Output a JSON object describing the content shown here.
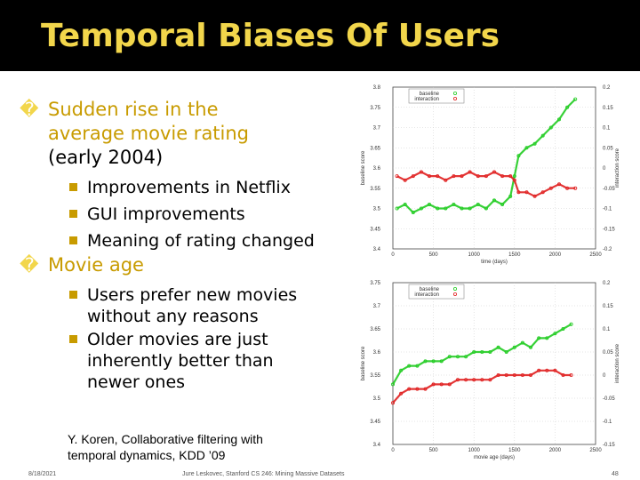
{
  "slide": {
    "title": "Temporal Biases Of Users",
    "bullets": [
      {
        "marker": "�",
        "lines": [
          "Sudden rise in the",
          "average movie rating",
          "(early 2004)"
        ],
        "subs": [
          "Improvements in Netflix",
          "GUI improvements",
          "Meaning of rating changed"
        ]
      },
      {
        "marker": "�",
        "lines": [
          "Movie age"
        ],
        "subs": [
          [
            "Users prefer new movies",
            "without any reasons"
          ],
          [
            "Older movies are just",
            "inherently better than",
            "newer ones"
          ]
        ]
      }
    ],
    "reference": [
      "Y. Koren, Collaborative filtering with",
      "temporal dynamics, KDD ’09"
    ],
    "footer": {
      "date": "8/18/2021",
      "course": "Jure Leskovec, Stanford CS 246: Mining Massive Datasets",
      "page": "48"
    }
  },
  "chart_data": [
    {
      "type": "scatter",
      "xlabel": "time (days)",
      "ylabel": "baseline score",
      "ylabel_right": "interaction score",
      "xlim": [
        0,
        2500
      ],
      "ylim": [
        3.4,
        3.8
      ],
      "ylim_right": [
        -0.2,
        0.2
      ],
      "xticks": [
        "0",
        "500",
        "1000",
        "1500",
        "2000",
        "2500"
      ],
      "yticks": [
        "3.4",
        "3.45",
        "3.5",
        "3.55",
        "3.6",
        "3.65",
        "3.7",
        "3.75",
        "3.8"
      ],
      "yticks_right": [
        "-0.2",
        "-0.15",
        "-0.1",
        "-0.05",
        "0",
        "0.05",
        "0.1",
        "0.15",
        "0.2"
      ],
      "legend": [
        "baseline",
        "interaction"
      ],
      "legend_position": "top-left",
      "grid": true,
      "series": [
        {
          "name": "baseline",
          "color": "#22cc22",
          "x": [
            50,
            150,
            250,
            350,
            450,
            550,
            650,
            750,
            850,
            950,
            1050,
            1150,
            1250,
            1350,
            1450,
            1500,
            1550,
            1650,
            1750,
            1850,
            1950,
            2050,
            2150,
            2250
          ],
          "y": [
            3.5,
            3.51,
            3.49,
            3.5,
            3.51,
            3.5,
            3.5,
            3.51,
            3.5,
            3.5,
            3.51,
            3.5,
            3.52,
            3.51,
            3.53,
            3.58,
            3.63,
            3.65,
            3.66,
            3.68,
            3.7,
            3.72,
            3.75,
            3.77
          ]
        },
        {
          "name": "interaction",
          "color": "#e02020",
          "x": [
            50,
            150,
            250,
            350,
            450,
            550,
            650,
            750,
            850,
            950,
            1050,
            1150,
            1250,
            1350,
            1450,
            1500,
            1550,
            1650,
            1750,
            1850,
            1950,
            2050,
            2150,
            2250
          ],
          "y": [
            -0.02,
            -0.03,
            -0.02,
            -0.01,
            -0.02,
            -0.02,
            -0.03,
            -0.02,
            -0.02,
            -0.01,
            -0.02,
            -0.02,
            -0.01,
            -0.02,
            -0.02,
            -0.03,
            -0.06,
            -0.06,
            -0.07,
            -0.06,
            -0.05,
            -0.04,
            -0.05,
            -0.05
          ]
        }
      ]
    },
    {
      "type": "scatter",
      "xlabel": "movie age (days)",
      "ylabel": "baseline score",
      "ylabel_right": "interaction score",
      "xlim": [
        0,
        2500
      ],
      "ylim": [
        3.4,
        3.75
      ],
      "ylim_right": [
        -0.15,
        0.2
      ],
      "xticks": [
        "0",
        "500",
        "1000",
        "1500",
        "2000",
        "2500"
      ],
      "yticks": [
        "3.4",
        "3.45",
        "3.5",
        "3.55",
        "3.6",
        "3.65",
        "3.7",
        "3.75"
      ],
      "yticks_right": [
        "-0.15",
        "-0.1",
        "-0.05",
        "0",
        "0.05",
        "0.1",
        "0.15",
        "0.2"
      ],
      "legend": [
        "baseline",
        "interaction"
      ],
      "legend_position": "top-left",
      "grid": true,
      "series": [
        {
          "name": "baseline",
          "color": "#22cc22",
          "x": [
            0,
            100,
            200,
            300,
            400,
            500,
            600,
            700,
            800,
            900,
            1000,
            1100,
            1200,
            1300,
            1400,
            1500,
            1600,
            1700,
            1800,
            1900,
            2000,
            2100,
            2200
          ],
          "y": [
            3.53,
            3.56,
            3.57,
            3.57,
            3.58,
            3.58,
            3.58,
            3.59,
            3.59,
            3.59,
            3.6,
            3.6,
            3.6,
            3.61,
            3.6,
            3.61,
            3.62,
            3.61,
            3.63,
            3.63,
            3.64,
            3.65,
            3.66
          ]
        },
        {
          "name": "interaction",
          "color": "#e02020",
          "x": [
            0,
            100,
            200,
            300,
            400,
            500,
            600,
            700,
            800,
            900,
            1000,
            1100,
            1200,
            1300,
            1400,
            1500,
            1600,
            1700,
            1800,
            1900,
            2000,
            2100,
            2200
          ],
          "y": [
            3.49,
            3.51,
            3.52,
            3.52,
            3.52,
            3.53,
            3.53,
            3.53,
            3.54,
            3.54,
            3.54,
            3.54,
            3.54,
            3.55,
            3.55,
            3.55,
            3.55,
            3.55,
            3.56,
            3.56,
            3.56,
            3.55,
            3.55
          ]
        }
      ]
    }
  ]
}
